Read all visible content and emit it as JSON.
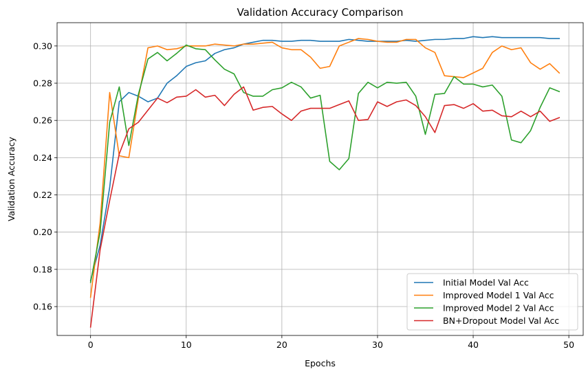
{
  "chart_data": {
    "type": "line",
    "title": "Validation Accuracy Comparison",
    "xlabel": "Epochs",
    "ylabel": "Validation Accuracy",
    "xlim": [
      -3.5,
      51.5
    ],
    "ylim": [
      0.1445,
      0.3125
    ],
    "xticks": [
      0,
      10,
      20,
      30,
      40,
      50
    ],
    "yticks": [
      0.16,
      0.18,
      0.2,
      0.22,
      0.24,
      0.26,
      0.28,
      0.3
    ],
    "ytick_labels": [
      "0.16",
      "0.18",
      "0.20",
      "0.22",
      "0.24",
      "0.26",
      "0.28",
      "0.30"
    ],
    "grid": true,
    "legend_position": "lower-right",
    "x": [
      0,
      1,
      2,
      3,
      4,
      5,
      6,
      7,
      8,
      9,
      10,
      11,
      12,
      13,
      14,
      15,
      16,
      17,
      18,
      19,
      20,
      21,
      22,
      23,
      24,
      25,
      26,
      27,
      28,
      29,
      30,
      31,
      32,
      33,
      34,
      35,
      36,
      37,
      38,
      39,
      40,
      41,
      42,
      43,
      44,
      45,
      46,
      47,
      48,
      49
    ],
    "series": [
      {
        "name": "Initial Model Val Acc",
        "color": "#1f77b4",
        "values": [
          0.174,
          0.193,
          0.224,
          0.27,
          0.275,
          0.273,
          0.27,
          0.272,
          0.28,
          0.284,
          0.289,
          0.291,
          0.292,
          0.296,
          0.298,
          0.299,
          0.301,
          0.302,
          0.303,
          0.303,
          0.3025,
          0.3025,
          0.303,
          0.303,
          0.3025,
          0.3025,
          0.3025,
          0.3035,
          0.303,
          0.3025,
          0.3025,
          0.3025,
          0.3025,
          0.303,
          0.3025,
          0.303,
          0.3035,
          0.3035,
          0.304,
          0.304,
          0.305,
          0.3045,
          0.305,
          0.3045,
          0.3045,
          0.3045,
          0.3045,
          0.3045,
          0.304,
          0.304
        ]
      },
      {
        "name": "Improved Model 1 Val Acc",
        "color": "#ff7f0e",
        "values": [
          0.165,
          0.205,
          0.275,
          0.241,
          0.24,
          0.272,
          0.299,
          0.3,
          0.298,
          0.2985,
          0.3,
          0.3,
          0.3,
          0.301,
          0.3005,
          0.3,
          0.301,
          0.301,
          0.3015,
          0.302,
          0.299,
          0.298,
          0.298,
          0.294,
          0.288,
          0.289,
          0.3,
          0.302,
          0.304,
          0.3035,
          0.3025,
          0.302,
          0.302,
          0.3035,
          0.3035,
          0.299,
          0.2965,
          0.284,
          0.2835,
          0.283,
          0.2855,
          0.288,
          0.2965,
          0.3,
          0.298,
          0.299,
          0.291,
          0.2875,
          0.2905,
          0.2855
        ]
      },
      {
        "name": "Improved Model 2 Val Acc",
        "color": "#2ca02c",
        "values": [
          0.173,
          0.2,
          0.259,
          0.278,
          0.2465,
          0.274,
          0.293,
          0.2965,
          0.292,
          0.296,
          0.3005,
          0.2985,
          0.298,
          0.2925,
          0.2875,
          0.285,
          0.275,
          0.273,
          0.273,
          0.2765,
          0.2775,
          0.2805,
          0.278,
          0.272,
          0.2735,
          0.238,
          0.2335,
          0.2395,
          0.2745,
          0.2805,
          0.2775,
          0.2805,
          0.28,
          0.2805,
          0.273,
          0.2525,
          0.274,
          0.2745,
          0.2835,
          0.2795,
          0.2795,
          0.278,
          0.279,
          0.273,
          0.2495,
          0.248,
          0.2545,
          0.267,
          0.2775,
          0.2755
        ]
      },
      {
        "name": "BN+Dropout Model Val Acc",
        "color": "#d62728",
        "values": [
          0.149,
          0.1905,
          0.217,
          0.242,
          0.2555,
          0.259,
          0.2655,
          0.272,
          0.2695,
          0.2725,
          0.273,
          0.2765,
          0.2725,
          0.2735,
          0.268,
          0.274,
          0.278,
          0.2655,
          0.267,
          0.2675,
          0.2635,
          0.26,
          0.265,
          0.2665,
          0.2665,
          0.2665,
          0.2685,
          0.2705,
          0.26,
          0.2605,
          0.27,
          0.2675,
          0.27,
          0.271,
          0.268,
          0.262,
          0.2535,
          0.268,
          0.2685,
          0.2665,
          0.269,
          0.265,
          0.2655,
          0.2625,
          0.262,
          0.265,
          0.262,
          0.265,
          0.2595,
          0.2615
        ]
      }
    ]
  }
}
